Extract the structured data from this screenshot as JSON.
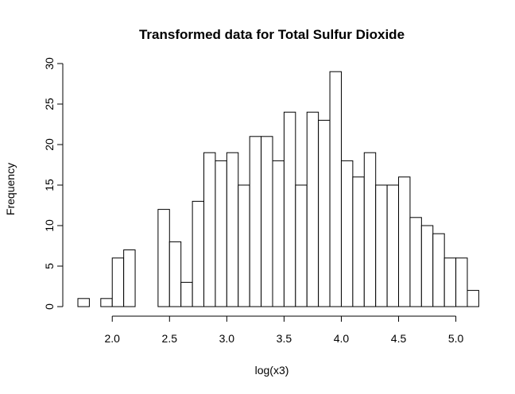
{
  "chart_data": {
    "type": "bar",
    "title": "Transformed data for Total Sulfur Dioxide",
    "xlabel": "log(x3)",
    "ylabel": "Frequency",
    "bin_width": 0.1,
    "bin_start": 1.7,
    "values": [
      1,
      0,
      1,
      6,
      7,
      0,
      0,
      12,
      8,
      3,
      13,
      19,
      18,
      19,
      15,
      21,
      21,
      18,
      24,
      15,
      24,
      23,
      29,
      18,
      16,
      19,
      15,
      15,
      16,
      11,
      10,
      9,
      6,
      6,
      2
    ],
    "xlim": [
      1.7,
      5.1
    ],
    "ylim": [
      0,
      30
    ],
    "x_ticks": [
      "2.0",
      "2.5",
      "3.0",
      "3.5",
      "4.0",
      "4.5",
      "5.0"
    ],
    "y_ticks": [
      "0",
      "5",
      "10",
      "15",
      "20",
      "25",
      "30"
    ],
    "grid": false,
    "legend": "none",
    "bar_fill": "#ffffff",
    "bar_stroke": "#000000"
  }
}
